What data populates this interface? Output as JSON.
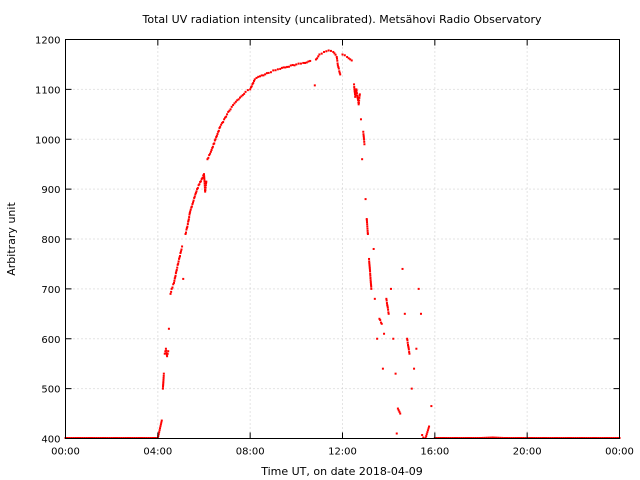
{
  "chart_data": {
    "type": "scatter",
    "title": "Total UV radiation intensity (uncalibrated). Metsähovi Radio Observatory",
    "xlabel": "Time UT, on date 2018-04-09",
    "ylabel": "Arbitrary unit",
    "x_unit": "hours UT",
    "xlim": [
      0,
      24
    ],
    "ylim": [
      400,
      1200
    ],
    "x_ticks": [
      {
        "value": 0,
        "label": "00:00"
      },
      {
        "value": 4,
        "label": "04:00"
      },
      {
        "value": 8,
        "label": "08:00"
      },
      {
        "value": 12,
        "label": "12:00"
      },
      {
        "value": 16,
        "label": "16:00"
      },
      {
        "value": 20,
        "label": "20:00"
      },
      {
        "value": 24,
        "label": "00:00"
      }
    ],
    "y_ticks": [
      {
        "value": 400,
        "label": "400"
      },
      {
        "value": 500,
        "label": "500"
      },
      {
        "value": 600,
        "label": "600"
      },
      {
        "value": 700,
        "label": "700"
      },
      {
        "value": 800,
        "label": "800"
      },
      {
        "value": 900,
        "label": "900"
      },
      {
        "value": 1000,
        "label": "1000"
      },
      {
        "value": 1100,
        "label": "1100"
      },
      {
        "value": 1200,
        "label": "1200"
      }
    ],
    "grid": true,
    "marker_color": "#ff0000",
    "series": [
      {
        "points": [
          [
            0.0,
            401
          ],
          [
            0.5,
            401
          ],
          [
            1.0,
            401
          ],
          [
            1.5,
            401
          ],
          [
            2.0,
            401
          ],
          [
            2.5,
            401
          ],
          [
            3.0,
            401
          ],
          [
            3.5,
            401
          ],
          [
            4.0,
            401
          ],
          [
            4.17,
            436
          ],
          [
            4.22,
            500
          ],
          [
            4.26,
            530
          ],
          [
            4.3,
            570
          ],
          [
            4.35,
            580
          ],
          [
            4.4,
            565
          ],
          [
            4.45,
            575
          ],
          [
            4.48,
            620
          ],
          [
            4.55,
            690
          ],
          [
            4.6,
            700
          ],
          [
            4.7,
            712
          ],
          [
            4.8,
            735
          ],
          [
            4.9,
            755
          ],
          [
            5.0,
            775
          ],
          [
            5.05,
            785
          ],
          [
            5.1,
            720
          ],
          [
            5.2,
            810
          ],
          [
            5.3,
            830
          ],
          [
            5.4,
            855
          ],
          [
            5.5,
            870
          ],
          [
            5.6,
            885
          ],
          [
            5.7,
            900
          ],
          [
            5.8,
            910
          ],
          [
            5.9,
            920
          ],
          [
            6.0,
            930
          ],
          [
            6.05,
            895
          ],
          [
            6.1,
            915
          ],
          [
            6.15,
            960
          ],
          [
            6.3,
            975
          ],
          [
            6.5,
            1000
          ],
          [
            6.7,
            1025
          ],
          [
            7.0,
            1050
          ],
          [
            7.2,
            1065
          ],
          [
            7.5,
            1080
          ],
          [
            7.8,
            1095
          ],
          [
            8.0,
            1100
          ],
          [
            8.2,
            1120
          ],
          [
            8.5,
            1128
          ],
          [
            8.8,
            1133
          ],
          [
            9.0,
            1138
          ],
          [
            9.3,
            1141
          ],
          [
            9.6,
            1145
          ],
          [
            10.0,
            1150
          ],
          [
            10.3,
            1153
          ],
          [
            10.6,
            1157
          ],
          [
            10.8,
            1108
          ],
          [
            10.85,
            1160
          ],
          [
            11.0,
            1170
          ],
          [
            11.2,
            1175
          ],
          [
            11.4,
            1178
          ],
          [
            11.6,
            1175
          ],
          [
            11.75,
            1165
          ],
          [
            11.8,
            1148
          ],
          [
            11.9,
            1130
          ],
          [
            12.0,
            1170
          ],
          [
            12.2,
            1165
          ],
          [
            12.4,
            1158
          ],
          [
            12.5,
            1110
          ],
          [
            12.55,
            1085
          ],
          [
            12.6,
            1100
          ],
          [
            12.7,
            1070
          ],
          [
            12.75,
            1090
          ],
          [
            12.8,
            1040
          ],
          [
            12.85,
            960
          ],
          [
            12.9,
            1015
          ],
          [
            12.95,
            990
          ],
          [
            13.0,
            880
          ],
          [
            13.05,
            840
          ],
          [
            13.1,
            810
          ],
          [
            13.15,
            760
          ],
          [
            13.2,
            730
          ],
          [
            13.25,
            700
          ],
          [
            13.35,
            780
          ],
          [
            13.4,
            680
          ],
          [
            13.5,
            600
          ],
          [
            13.6,
            640
          ],
          [
            13.7,
            630
          ],
          [
            13.75,
            540
          ],
          [
            13.8,
            610
          ],
          [
            13.9,
            680
          ],
          [
            14.0,
            650
          ],
          [
            14.1,
            700
          ],
          [
            14.2,
            600
          ],
          [
            14.3,
            530
          ],
          [
            14.35,
            410
          ],
          [
            14.4,
            460
          ],
          [
            14.5,
            450
          ],
          [
            14.6,
            740
          ],
          [
            14.7,
            650
          ],
          [
            14.8,
            600
          ],
          [
            14.9,
            570
          ],
          [
            15.0,
            500
          ],
          [
            15.1,
            540
          ],
          [
            15.2,
            580
          ],
          [
            15.3,
            700
          ],
          [
            15.4,
            650
          ],
          [
            15.45,
            407
          ],
          [
            15.5,
            402
          ],
          [
            15.6,
            401
          ],
          [
            15.75,
            424
          ],
          [
            15.85,
            465
          ],
          [
            16.0,
            401
          ],
          [
            16.5,
            401
          ],
          [
            17.0,
            401
          ],
          [
            17.5,
            401
          ],
          [
            18.0,
            401
          ],
          [
            18.5,
            402
          ],
          [
            19.0,
            401
          ],
          [
            19.5,
            401
          ],
          [
            20.0,
            401
          ],
          [
            20.5,
            401
          ],
          [
            21.0,
            401
          ],
          [
            21.5,
            401
          ],
          [
            22.0,
            401
          ],
          [
            22.5,
            401
          ],
          [
            23.0,
            401
          ],
          [
            23.5,
            401
          ],
          [
            24.0,
            401
          ]
        ]
      }
    ]
  }
}
